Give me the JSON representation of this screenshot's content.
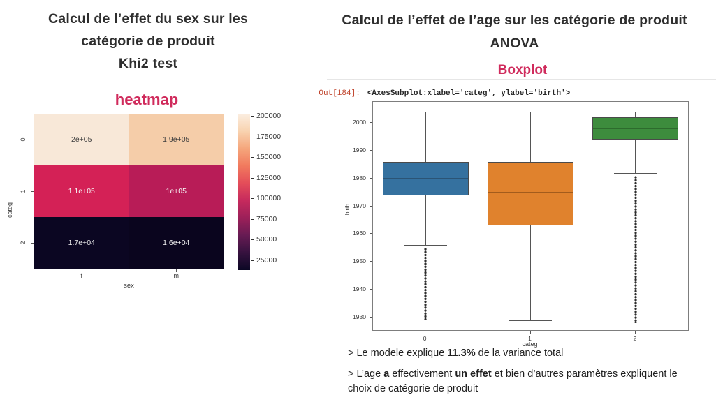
{
  "accent_pink": "#d02b5c",
  "left": {
    "title_lines": [
      "Calcul de l’effet du sex sur les",
      "catégorie de produit",
      "Khi2 test"
    ]
  },
  "right": {
    "title_lines": [
      "Calcul de l’effet de l’age sur les catégorie de produit",
      "ANOVA"
    ],
    "out_prompt": "Out[184]:",
    "out_prompt_color": "#c0432b",
    "out_code": "<AxesSubplot:xlabel='categ', ylabel='birth'>"
  },
  "notes": [
    {
      "segments": [
        {
          "t": "> Le modele explique ",
          "b": false
        },
        {
          "t": "11.3%",
          "b": true
        },
        {
          "t": " de la variance total",
          "b": false
        }
      ]
    },
    {
      "segments": [
        {
          "t": "> L’age ",
          "b": false
        },
        {
          "t": "a",
          "b": true
        },
        {
          "t": " effectivement ",
          "b": false
        },
        {
          "t": "un effet",
          "b": true
        },
        {
          "t": " et bien d’autres paramètres expliquent le choix de catégorie de produit",
          "b": false
        }
      ]
    }
  ],
  "chart_data": [
    {
      "type": "heatmap",
      "title": "heatmap",
      "xlabel": "sex",
      "ylabel": "categ",
      "x_categories": [
        "f",
        "m"
      ],
      "y_categories": [
        "0",
        "1",
        "2"
      ],
      "values": [
        [
          200000,
          190000
        ],
        [
          110000,
          100000
        ],
        [
          17000,
          16000
        ]
      ],
      "cell_labels": [
        [
          "2e+05",
          "1.9e+05"
        ],
        [
          "1.1e+05",
          "1e+05"
        ],
        [
          "1.7e+04",
          "1.6e+04"
        ]
      ],
      "cell_colors": [
        [
          "#f8e8d8",
          "#f5cda9"
        ],
        [
          "#d42156",
          "#b81c57"
        ],
        [
          "#0b0622",
          "#0a051e"
        ]
      ],
      "cell_text_colors": [
        [
          "#3d3d3d",
          "#3d3d3d"
        ],
        [
          "#f5f5f5",
          "#f5f5f5"
        ],
        [
          "#f0f0f0",
          "#f0f0f0"
        ]
      ],
      "colorbar": {
        "ticks": [
          200000,
          175000,
          150000,
          125000,
          100000,
          75000,
          50000,
          25000
        ],
        "vmin": 13000,
        "vmax": 202500,
        "gradient": [
          "#fbeee1",
          "#f8d3b0",
          "#f5a67c",
          "#f17a5e",
          "#e44d59",
          "#c62a5d",
          "#9c2059",
          "#671b53",
          "#36123f",
          "#0b0724"
        ]
      }
    },
    {
      "type": "boxplot",
      "title": "Boxplot",
      "xlabel": "categ",
      "ylabel": "birth",
      "categories": [
        "0",
        "1",
        "2"
      ],
      "y_ticks": [
        2000,
        1990,
        1980,
        1970,
        1960,
        1950,
        1940,
        1930
      ],
      "ylim": [
        1925.5,
        2007.5
      ],
      "grid": false,
      "edge_color": "#4a4a4a",
      "whisker_color": "#555555",
      "outlier_color": "#2e2e2e",
      "series": [
        {
          "categ": "0",
          "color": "#35719f",
          "median_color": "#2b5475",
          "whisker_low": 1956,
          "q1": 1974,
          "median": 1980,
          "q3": 1986,
          "whisker_high": 2004,
          "outliers_range": [
            1929,
            1955
          ]
        },
        {
          "categ": "1",
          "color": "#e0822d",
          "median_color": "#a35c1c",
          "whisker_low": 1929,
          "q1": 1963,
          "median": 1975,
          "q3": 1986,
          "whisker_high": 2004,
          "outliers_range": null
        },
        {
          "categ": "2",
          "color": "#3d8c3d",
          "median_color": "#2d6b2d",
          "whisker_low": 1982,
          "q1": 1994,
          "median": 1998,
          "q3": 2002,
          "whisker_high": 2004,
          "outliers_range": [
            1928,
            1981
          ]
        }
      ]
    }
  ]
}
